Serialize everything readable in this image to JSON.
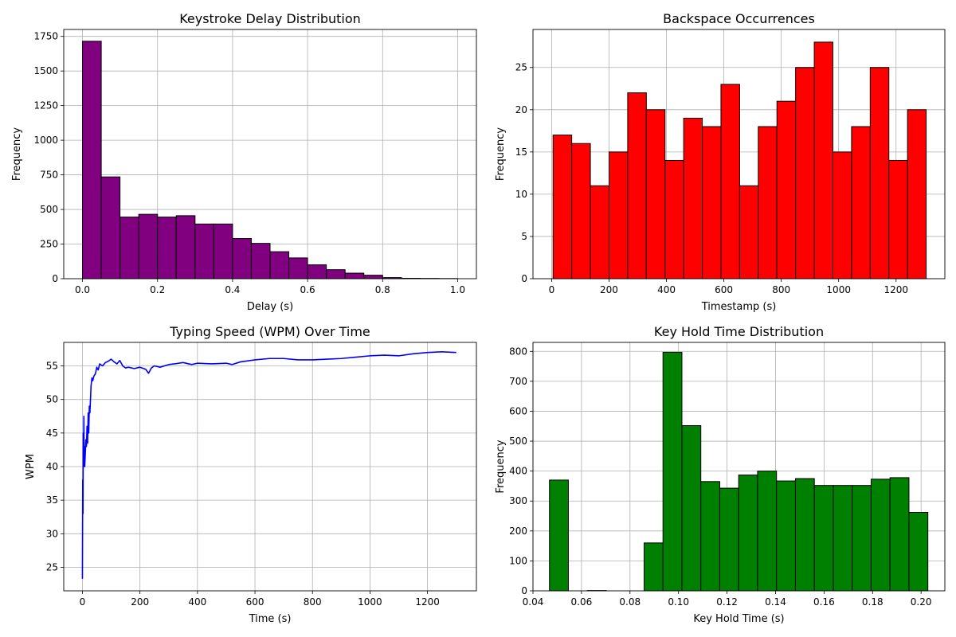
{
  "figure": {
    "background": "#ffffff",
    "grid_color": "#b0b0b0",
    "edge_color": "#000000"
  },
  "chart_data": [
    {
      "type": "bar",
      "subtype": "histogram",
      "title": "Keystroke Delay Distribution",
      "xlabel": "Delay (s)",
      "ylabel": "Frequency",
      "color": "#800080",
      "xlim": [
        -0.05,
        1.05
      ],
      "ylim": [
        0,
        1800
      ],
      "xticks": [
        0.0,
        0.2,
        0.4,
        0.6,
        0.8,
        1.0
      ],
      "xtick_labels": [
        "0.0",
        "0.2",
        "0.4",
        "0.6",
        "0.8",
        "1.0"
      ],
      "yticks": [
        0,
        250,
        500,
        750,
        1000,
        1250,
        1500,
        1750
      ],
      "ytick_labels": [
        "0",
        "250",
        "500",
        "750",
        "1000",
        "1250",
        "1500",
        "1750"
      ],
      "bin_edges": [
        0.0,
        0.05,
        0.1,
        0.15,
        0.2,
        0.25,
        0.3,
        0.35,
        0.4,
        0.45,
        0.5,
        0.55,
        0.6,
        0.65,
        0.7,
        0.75,
        0.8,
        0.85,
        0.9,
        0.95,
        1.0
      ],
      "values": [
        1715,
        735,
        445,
        465,
        445,
        455,
        395,
        395,
        290,
        255,
        195,
        150,
        100,
        65,
        40,
        25,
        8,
        3,
        2,
        1
      ],
      "grid": true
    },
    {
      "type": "bar",
      "subtype": "histogram",
      "title": "Backspace Occurrences",
      "xlabel": "Timestamp (s)",
      "ylabel": "Frequency",
      "color": "#ff0000",
      "xlim": [
        -65,
        1370
      ],
      "ylim": [
        0,
        29.5
      ],
      "xticks": [
        0,
        200,
        400,
        600,
        800,
        1000,
        1200
      ],
      "xtick_labels": [
        "0",
        "200",
        "400",
        "600",
        "800",
        "1000",
        "1200"
      ],
      "yticks": [
        0,
        5,
        10,
        15,
        20,
        25
      ],
      "ytick_labels": [
        "0",
        "5",
        "10",
        "15",
        "20",
        "25"
      ],
      "bin_edges": [
        5,
        70,
        135,
        200,
        265,
        330,
        395,
        460,
        525,
        590,
        655,
        720,
        785,
        850,
        915,
        980,
        1045,
        1110,
        1175,
        1240,
        1305
      ],
      "values": [
        17,
        16,
        11,
        15,
        22,
        20,
        14,
        19,
        18,
        23,
        11,
        18,
        21,
        25,
        28,
        15,
        18,
        25,
        14,
        20
      ],
      "grid": true
    },
    {
      "type": "line",
      "title": "Typing Speed (WPM) Over Time",
      "xlabel": "Time (s)",
      "ylabel": "WPM",
      "color": "#0000ff",
      "xlim": [
        -65,
        1370
      ],
      "ylim": [
        21.5,
        58.5
      ],
      "xticks": [
        0,
        200,
        400,
        600,
        800,
        1000,
        1200
      ],
      "xtick_labels": [
        "0",
        "200",
        "400",
        "600",
        "800",
        "1000",
        "1200"
      ],
      "yticks": [
        25,
        30,
        35,
        40,
        45,
        50,
        55
      ],
      "ytick_labels": [
        "25",
        "30",
        "35",
        "40",
        "45",
        "50",
        "55"
      ],
      "x": [
        0,
        1,
        2,
        3,
        4,
        5,
        6,
        7,
        8,
        10,
        12,
        14,
        16,
        18,
        20,
        22,
        24,
        26,
        28,
        30,
        33,
        36,
        40,
        45,
        50,
        55,
        60,
        70,
        80,
        90,
        100,
        110,
        120,
        130,
        140,
        150,
        160,
        180,
        200,
        220,
        230,
        240,
        250,
        270,
        300,
        320,
        350,
        380,
        400,
        450,
        500,
        520,
        550,
        600,
        650,
        700,
        750,
        800,
        850,
        900,
        950,
        1000,
        1050,
        1100,
        1150,
        1200,
        1250,
        1300
      ],
      "y": [
        23.3,
        38,
        33,
        45,
        40,
        47.5,
        41,
        43,
        40,
        42,
        44,
        43,
        46,
        43.5,
        48,
        45,
        49,
        48,
        50,
        52,
        53.2,
        52.8,
        53.5,
        53.8,
        54.8,
        54.4,
        55.3,
        55,
        55.5,
        55.7,
        56,
        55.6,
        55.3,
        55.8,
        55,
        54.7,
        54.8,
        54.6,
        54.8,
        54.5,
        53.9,
        54.7,
        55,
        54.8,
        55.2,
        55.3,
        55.5,
        55.2,
        55.4,
        55.3,
        55.4,
        55.2,
        55.6,
        55.9,
        56.1,
        56.1,
        55.9,
        55.9,
        56,
        56.1,
        56.3,
        56.5,
        56.6,
        56.5,
        56.8,
        57.0,
        57.1,
        57.0
      ],
      "grid": true
    },
    {
      "type": "bar",
      "subtype": "histogram",
      "title": "Key Hold Time Distribution",
      "xlabel": "Key Hold Time (s)",
      "ylabel": "Frequency",
      "color": "#008000",
      "xlim": [
        0.04,
        0.2098
      ],
      "ylim": [
        0,
        830
      ],
      "xticks": [
        0.04,
        0.06,
        0.08,
        0.1,
        0.12,
        0.14,
        0.16,
        0.18,
        0.2
      ],
      "xtick_labels": [
        "0.04",
        "0.06",
        "0.08",
        "0.10",
        "0.12",
        "0.14",
        "0.16",
        "0.18",
        "0.20"
      ],
      "yticks": [
        0,
        100,
        200,
        300,
        400,
        500,
        600,
        700,
        800
      ],
      "ytick_labels": [
        "0",
        "100",
        "200",
        "300",
        "400",
        "500",
        "600",
        "700",
        "800"
      ],
      "bin_edges": [
        0.0468,
        0.0546,
        0.0624,
        0.0702,
        0.078,
        0.0858,
        0.0936,
        0.1014,
        0.1092,
        0.117,
        0.1248,
        0.1326,
        0.1404,
        0.1482,
        0.156,
        0.1638,
        0.1716,
        0.1794,
        0.1872,
        0.195,
        0.2028
      ],
      "values": [
        370,
        0,
        1,
        0,
        0,
        160,
        797,
        552,
        365,
        343,
        387,
        400,
        367,
        375,
        352,
        352,
        352,
        373,
        378,
        262
      ],
      "grid": true
    }
  ]
}
